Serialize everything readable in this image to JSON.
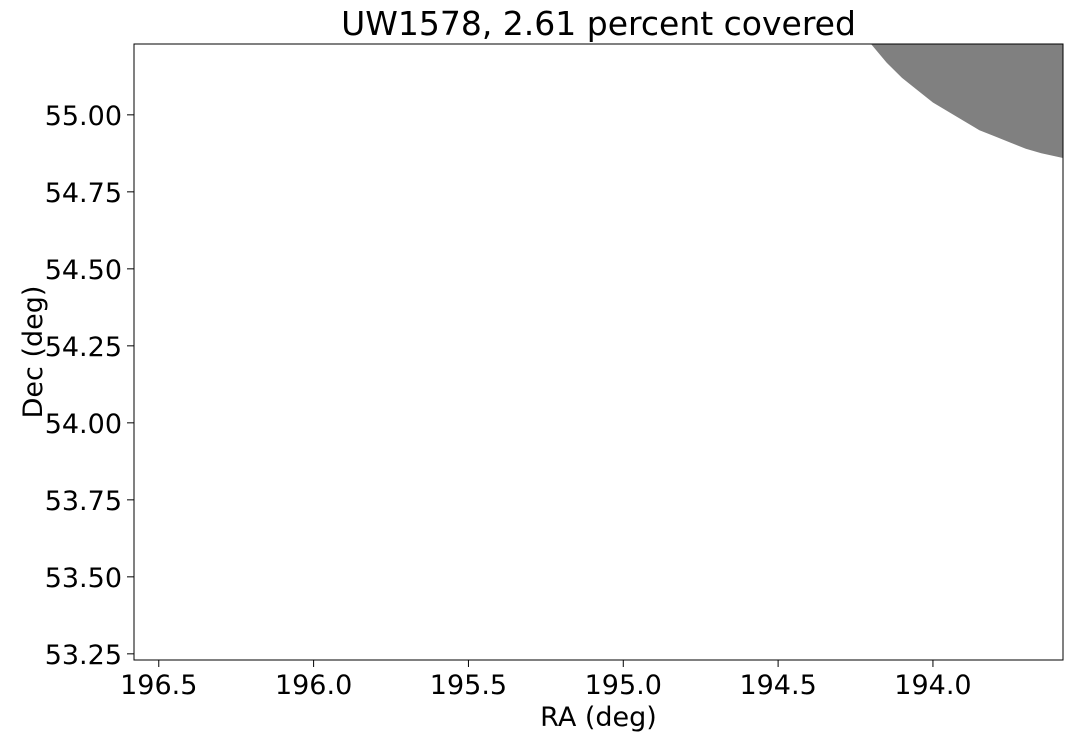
{
  "chart_data": {
    "type": "area",
    "title": "UW1578, 2.61 percent covered",
    "xlabel": "RA (deg)",
    "ylabel": "Dec (deg)",
    "xlim": [
      196.58,
      193.58
    ],
    "ylim": [
      53.23,
      55.23
    ],
    "x_inverted": true,
    "xticks": [
      196.5,
      196.0,
      195.5,
      195.0,
      194.5,
      194.0
    ],
    "xtick_labels": [
      "196.5",
      "196.0",
      "195.5",
      "195.0",
      "194.5",
      "194.0"
    ],
    "yticks": [
      53.25,
      53.5,
      53.75,
      54.0,
      54.25,
      54.5,
      54.75,
      55.0
    ],
    "ytick_labels": [
      "53.25",
      "53.50",
      "53.75",
      "54.00",
      "54.25",
      "54.50",
      "54.75",
      "55.00"
    ],
    "grid": false,
    "legend": "none",
    "covered_region": {
      "fill_color": "#808080",
      "boundary": [
        [
          194.2,
          55.23
        ],
        [
          194.15,
          55.17
        ],
        [
          194.1,
          55.12
        ],
        [
          194.05,
          55.08
        ],
        [
          194.0,
          55.04
        ],
        [
          193.95,
          55.01
        ],
        [
          193.9,
          54.98
        ],
        [
          193.85,
          54.95
        ],
        [
          193.8,
          54.93
        ],
        [
          193.75,
          54.91
        ],
        [
          193.7,
          54.89
        ],
        [
          193.65,
          54.875
        ],
        [
          193.58,
          54.86
        ]
      ]
    }
  }
}
